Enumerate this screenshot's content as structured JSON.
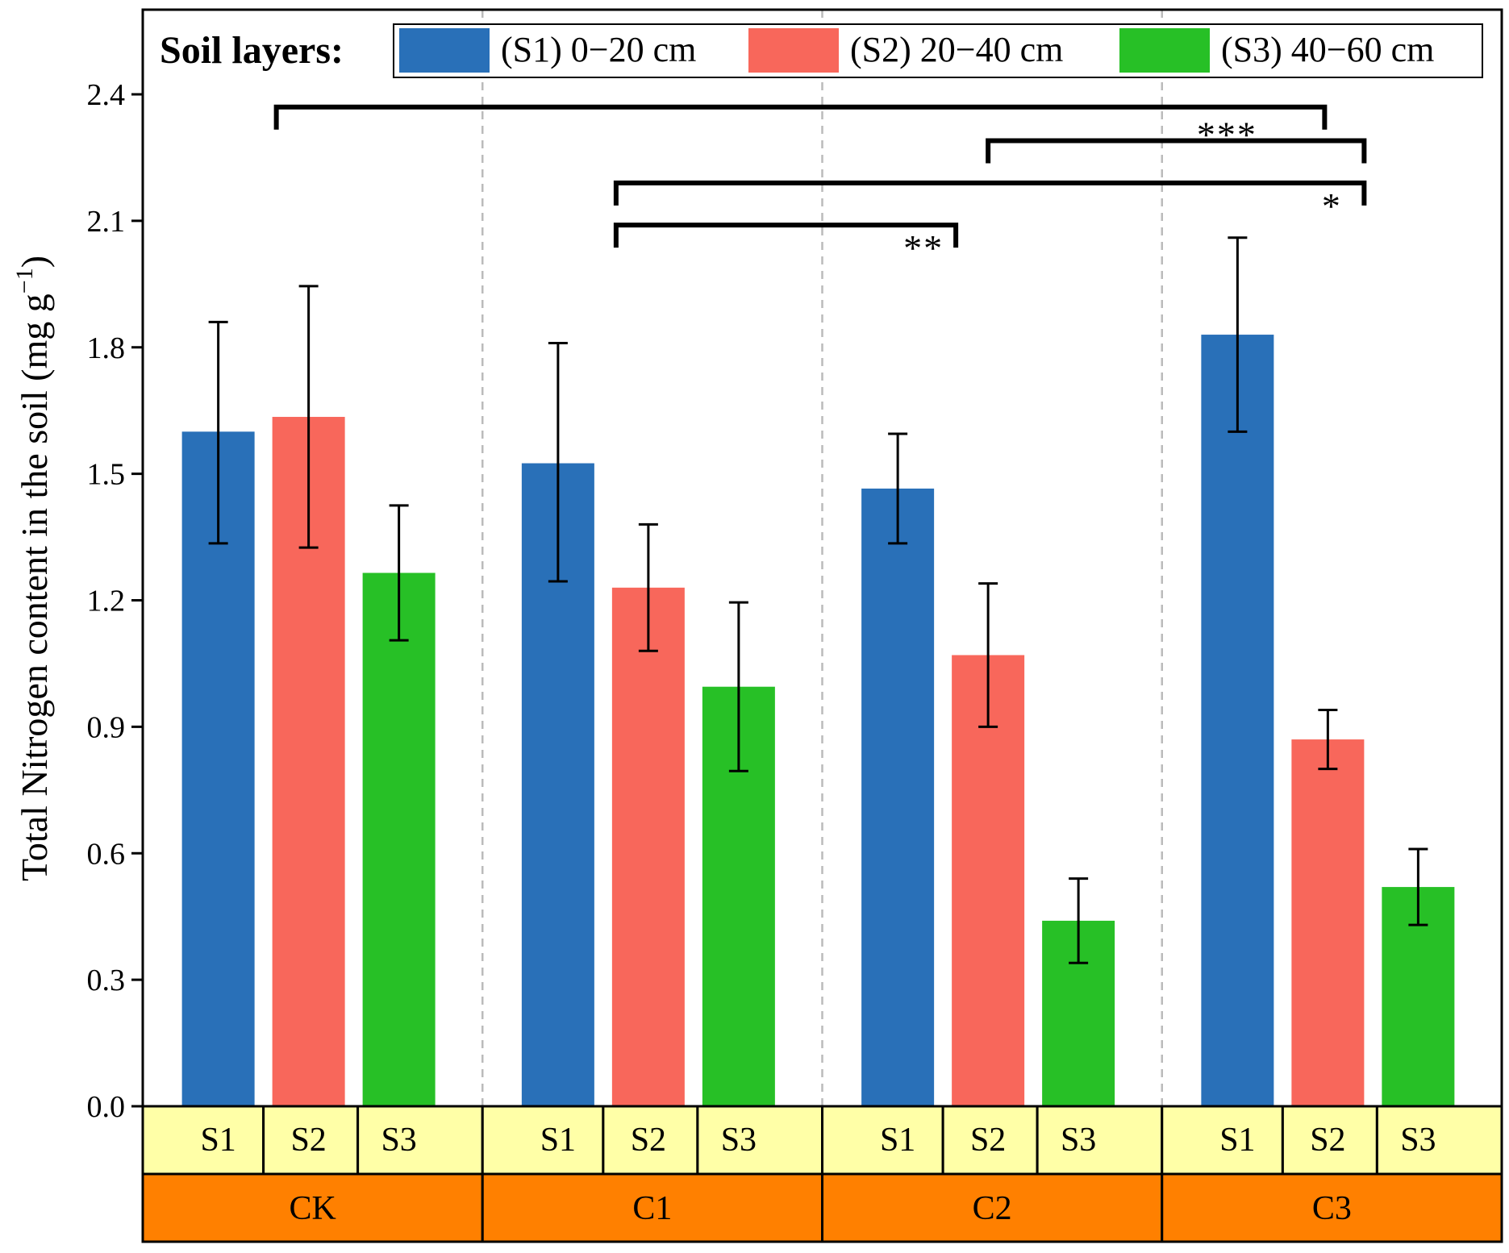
{
  "chart_data": {
    "type": "bar",
    "ylabel": "Total Nitrogen content in the soil (mg g",
    "ylabel_sup": "−1",
    "ylabel_close": ")",
    "ylim": [
      0,
      2.4
    ],
    "yticks": [
      "0.0",
      "0.3",
      "0.6",
      "0.9",
      "1.2",
      "1.5",
      "1.8",
      "2.1",
      "2.4"
    ],
    "grid": false,
    "legend_placement": "top",
    "legend_title": "Soil layers:",
    "groups": [
      "CK",
      "C1",
      "C2",
      "C3"
    ],
    "layers": [
      "S1",
      "S2",
      "S3"
    ],
    "series": [
      {
        "name": "(S1) 0−20 cm",
        "layer": "S1",
        "color": "#2970B8",
        "values": [
          1.6,
          1.525,
          1.465,
          1.83
        ],
        "err_low": [
          1.335,
          1.245,
          1.335,
          1.6
        ],
        "err_high": [
          1.86,
          1.81,
          1.595,
          2.06
        ]
      },
      {
        "name": "(S2) 20−40 cm",
        "layer": "S2",
        "color": "#F8675B",
        "values": [
          1.635,
          1.23,
          1.07,
          0.87
        ],
        "err_low": [
          1.325,
          1.08,
          0.9,
          0.8
        ],
        "err_high": [
          1.945,
          1.38,
          1.24,
          0.94
        ]
      },
      {
        "name": "(S3) 40−60 cm",
        "layer": "S3",
        "color": "#27C026",
        "values": [
          1.265,
          0.995,
          0.44,
          0.52
        ],
        "err_low": [
          1.105,
          0.795,
          0.34,
          0.43
        ],
        "err_high": [
          1.425,
          1.195,
          0.54,
          0.61
        ]
      }
    ],
    "significance": [
      {
        "from": "CK",
        "to": "C3",
        "level": 2.37,
        "label": ""
      },
      {
        "from": "C2",
        "to": "C3",
        "level": 2.29,
        "label": "***"
      },
      {
        "from": "C1",
        "to": "C3",
        "level": 2.19,
        "label": "*"
      },
      {
        "from": "C1",
        "to": "C2",
        "level": 2.09,
        "label": "**"
      }
    ],
    "colors": {
      "layer_strip": "#FFFFA7",
      "group_strip": "#FF8000",
      "axis": "#000000",
      "separator": "#BBBBBB"
    }
  }
}
